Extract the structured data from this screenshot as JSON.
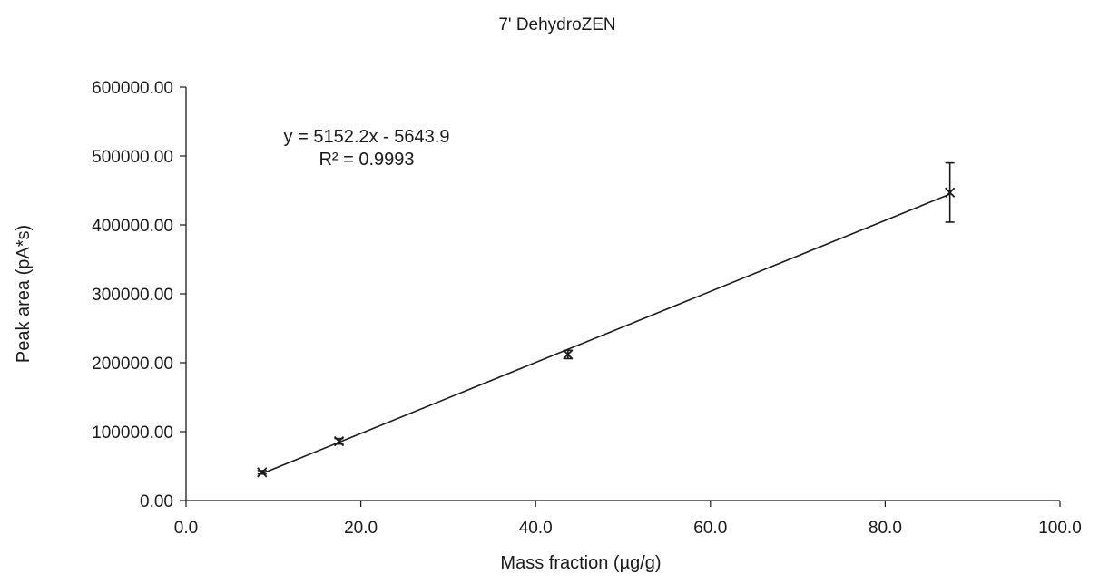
{
  "chart_data": {
    "type": "scatter",
    "title": "7' DehydroZEN",
    "xlabel": "Mass fraction (µg/g)",
    "ylabel": "Peak area (pA*s)",
    "xlim": [
      0,
      100
    ],
    "ylim": [
      0,
      600000
    ],
    "x_ticks": [
      "0.0",
      "20.0",
      "40.0",
      "60.0",
      "80.0",
      "100.0"
    ],
    "y_ticks": [
      "0.00",
      "100000.00",
      "200000.00",
      "300000.00",
      "400000.00",
      "500000.00",
      "600000.00"
    ],
    "grid": false,
    "legend": "none",
    "marker": "x",
    "color": "#1a1a1a",
    "series": [
      {
        "x": [
          8.7,
          17.5,
          43.7,
          87.4
        ],
        "y": [
          41000,
          86000,
          212000,
          447000
        ],
        "error": [
          2500,
          4000,
          6000,
          43000
        ]
      }
    ],
    "trendline": {
      "type": "linear",
      "slope": 5152.2,
      "intercept": -5643.9,
      "x_range": [
        8.7,
        87.4
      ]
    },
    "annotations": {
      "equation": "y = 5152.2x - 5643.9",
      "r_squared": "R² = 0.9993"
    }
  }
}
